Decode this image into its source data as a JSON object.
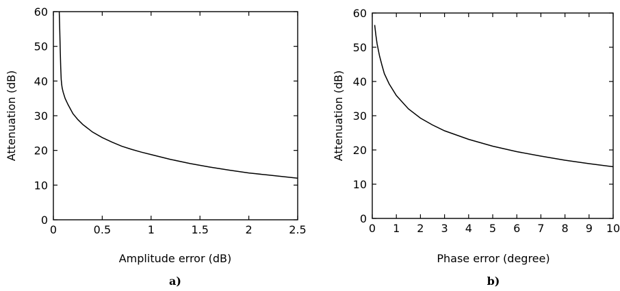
{
  "chart_data": [
    {
      "type": "line",
      "panel_label": "a)",
      "xlabel": "Amplitude error (dB)",
      "ylabel": "Attenuation (dB)",
      "xlim": [
        0,
        2.5
      ],
      "ylim": [
        0,
        60
      ],
      "xticks": [
        "0",
        "0.5",
        "1",
        "1.5",
        "2",
        "2.5"
      ],
      "yticks": [
        "0",
        "10",
        "20",
        "30",
        "40",
        "50",
        "60"
      ],
      "grid": false,
      "series": [
        {
          "x": [
            0.06,
            0.065,
            0.07,
            0.075,
            0.08,
            0.085,
            0.09,
            0.1,
            0.12,
            0.15,
            0.2,
            0.25,
            0.3,
            0.4,
            0.5,
            0.6,
            0.7,
            0.8,
            0.9,
            1.0,
            1.2,
            1.4,
            1.6,
            1.8,
            2.0,
            2.2,
            2.5
          ],
          "y": [
            60,
            55,
            49,
            44,
            40.5,
            39,
            38,
            36.8,
            35.0,
            33.2,
            30.6,
            28.9,
            27.5,
            25.3,
            23.7,
            22.4,
            21.2,
            20.3,
            19.5,
            18.8,
            17.4,
            16.2,
            15.2,
            14.3,
            13.5,
            12.9,
            12.0
          ]
        }
      ]
    },
    {
      "type": "line",
      "panel_label": "b)",
      "xlabel": "Phase error (degree)",
      "ylabel": "Attenuation (dB)",
      "xlim": [
        0,
        10
      ],
      "ylim": [
        0,
        60
      ],
      "xticks": [
        "0",
        "1",
        "2",
        "3",
        "4",
        "5",
        "6",
        "7",
        "8",
        "9",
        "10"
      ],
      "yticks": [
        "0",
        "10",
        "20",
        "30",
        "40",
        "50",
        "60"
      ],
      "grid": false,
      "series": [
        {
          "x": [
            0.1,
            0.15,
            0.2,
            0.3,
            0.4,
            0.5,
            0.7,
            1.0,
            1.5,
            2.0,
            2.5,
            3.0,
            4.0,
            5.0,
            6.0,
            7.0,
            8.0,
            9.0,
            10.0
          ],
          "y": [
            56.5,
            53.5,
            51.0,
            47.5,
            44.8,
            42.3,
            39.3,
            35.9,
            32.0,
            29.3,
            27.3,
            25.6,
            23.1,
            21.1,
            19.5,
            18.2,
            17.0,
            16.0,
            15.1
          ]
        }
      ]
    }
  ]
}
